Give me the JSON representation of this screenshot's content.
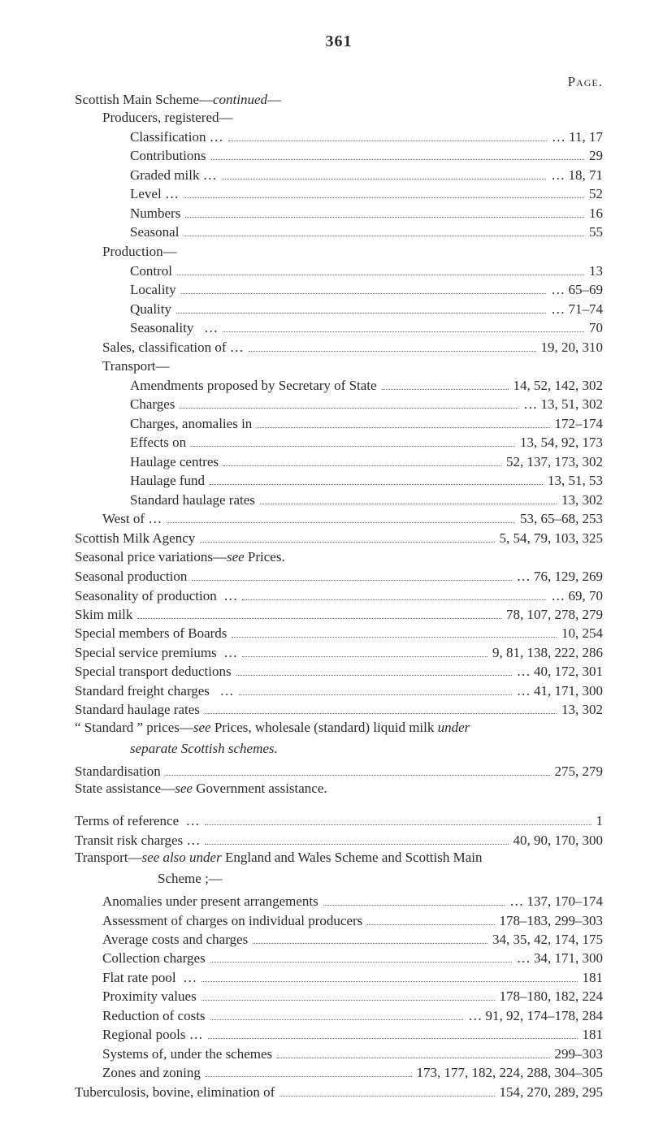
{
  "page_number": "361",
  "page_label": "Page.",
  "colors": {
    "text": "#2a2a2a",
    "background": "#ffffff",
    "dots": "#6a6a6a"
  },
  "typography": {
    "family": "Times New Roman",
    "base_size_pt": 17,
    "line_height": 1.38
  },
  "lines": [
    {
      "type": "heading",
      "indent": 0,
      "pre": "Scottish Main Scheme—",
      "ital": "continued",
      "post": "—"
    },
    {
      "type": "heading",
      "indent": 1,
      "text": "Producers, registered—"
    },
    {
      "type": "entry",
      "indent": 2,
      "label": "Classification …",
      "page": "… 11, 17"
    },
    {
      "type": "entry",
      "indent": 2,
      "label": "Contributions",
      "page": "29"
    },
    {
      "type": "entry",
      "indent": 2,
      "label": "Graded milk …",
      "page": "… 18, 71"
    },
    {
      "type": "entry",
      "indent": 2,
      "label": "Level …",
      "page": "52"
    },
    {
      "type": "entry",
      "indent": 2,
      "label": "Numbers",
      "page": "16"
    },
    {
      "type": "entry",
      "indent": 2,
      "label": "Seasonal",
      "page": "55"
    },
    {
      "type": "heading",
      "indent": 1,
      "text": "Production—"
    },
    {
      "type": "entry",
      "indent": 2,
      "label": "Control",
      "page": "13"
    },
    {
      "type": "entry",
      "indent": 2,
      "label": "Locality",
      "page": "… 65–69"
    },
    {
      "type": "entry",
      "indent": 2,
      "label": "Quality",
      "page": "… 71–74"
    },
    {
      "type": "entry",
      "indent": 2,
      "label": "Seasonality   …",
      "page": "70"
    },
    {
      "type": "entry",
      "indent": 1,
      "label": "Sales, classification of …",
      "page": "19, 20, 310"
    },
    {
      "type": "heading",
      "indent": 1,
      "text": "Transport—"
    },
    {
      "type": "entry",
      "indent": 2,
      "label": "Amendments proposed by Secretary of State",
      "page": "14, 52, 142, 302"
    },
    {
      "type": "entry",
      "indent": 2,
      "label": "Charges",
      "page": "… 13, 51, 302"
    },
    {
      "type": "entry",
      "indent": 2,
      "label": "Charges, anomalies in",
      "page": "172–174"
    },
    {
      "type": "entry",
      "indent": 2,
      "label": "Effects on",
      "page": "13, 54, 92, 173"
    },
    {
      "type": "entry",
      "indent": 2,
      "label": "Haulage centres",
      "page": "52, 137, 173, 302"
    },
    {
      "type": "entry",
      "indent": 2,
      "label": "Haulage fund",
      "page": "13, 51, 53"
    },
    {
      "type": "entry",
      "indent": 2,
      "label": "Standard haulage rates",
      "page": "13, 302"
    },
    {
      "type": "entry",
      "indent": 1,
      "label": "West of …",
      "page": "53, 65–68, 253"
    },
    {
      "type": "entry",
      "indent": 0,
      "label": "Scottish Milk Agency",
      "page": "5, 54, 79, 103, 325"
    },
    {
      "type": "heading-inline",
      "indent": 0,
      "pre": "Seasonal price variations—",
      "ital": "see",
      "post": " Prices."
    },
    {
      "type": "entry",
      "indent": 0,
      "label": "Seasonal production",
      "page": "… 76, 129, 269"
    },
    {
      "type": "entry",
      "indent": 0,
      "label": "Seasonality of production  …",
      "page": "… 69, 70"
    },
    {
      "type": "entry",
      "indent": 0,
      "label": "Skim milk",
      "page": "78, 107, 278, 279"
    },
    {
      "type": "entry",
      "indent": 0,
      "label": "Special members of Boards",
      "page": "10, 254"
    },
    {
      "type": "entry",
      "indent": 0,
      "label": "Special service premiums  …",
      "page": "9, 81, 138, 222, 286"
    },
    {
      "type": "entry",
      "indent": 0,
      "label": "Special transport deductions",
      "page": "… 40, 172, 301"
    },
    {
      "type": "entry",
      "indent": 0,
      "label": "Standard freight charges   …",
      "page": "… 41, 171, 300"
    },
    {
      "type": "entry",
      "indent": 0,
      "label": "Standard haulage rates",
      "page": "13, 302"
    },
    {
      "type": "rich-line",
      "indent": 0,
      "parts": [
        {
          "t": "“ Standard ”  prices—"
        },
        {
          "t": "see",
          "ital": true
        },
        {
          "t": "  Prices,  wholesale  (standard)  liquid  milk  "
        },
        {
          "t": "under",
          "ital": true
        }
      ]
    },
    {
      "type": "rich-line",
      "indent": 2,
      "parts": [
        {
          "t": "separate Scottish schemes.",
          "ital": true
        }
      ]
    },
    {
      "type": "entry",
      "indent": 0,
      "label": "Standardisation",
      "page": "275, 279"
    },
    {
      "type": "rich-line",
      "indent": 0,
      "parts": [
        {
          "t": "State assistance—"
        },
        {
          "t": "see",
          "ital": true
        },
        {
          "t": " Government assistance."
        }
      ]
    },
    {
      "type": "gap"
    },
    {
      "type": "gap"
    },
    {
      "type": "entry",
      "indent": 0,
      "label": "Terms of reference  …",
      "page": "1"
    },
    {
      "type": "entry",
      "indent": 0,
      "label": "Transit risk charges …",
      "page": "40, 90, 170, 300"
    },
    {
      "type": "rich-line",
      "indent": 0,
      "parts": [
        {
          "t": "Transport—"
        },
        {
          "t": "see also under",
          "ital": true
        },
        {
          "t": " England and Wales Scheme and Scottish Main"
        }
      ]
    },
    {
      "type": "rich-line",
      "indent": 3,
      "parts": [
        {
          "t": "Scheme ;—"
        }
      ]
    },
    {
      "type": "entry",
      "indent": 1,
      "label": "Anomalies under present arrangements",
      "page": "… 137, 170–174"
    },
    {
      "type": "entry",
      "indent": 1,
      "label": "Assessment of charges on individual producers",
      "page": "178–183, 299–303"
    },
    {
      "type": "entry",
      "indent": 1,
      "label": "Average costs and charges",
      "page": "34, 35, 42, 174, 175"
    },
    {
      "type": "entry",
      "indent": 1,
      "label": "Collection charges",
      "page": "… 34, 171, 300"
    },
    {
      "type": "entry",
      "indent": 1,
      "label": "Flat rate pool  …",
      "page": "181"
    },
    {
      "type": "entry",
      "indent": 1,
      "label": "Proximity values",
      "page": "178–180, 182, 224"
    },
    {
      "type": "entry",
      "indent": 1,
      "label": "Reduction of costs",
      "page": "… 91, 92, 174–178, 284"
    },
    {
      "type": "entry",
      "indent": 1,
      "label": "Regional pools …",
      "page": "181"
    },
    {
      "type": "entry",
      "indent": 1,
      "label": "Systems of, under the schemes",
      "page": "299–303"
    },
    {
      "type": "entry",
      "indent": 1,
      "label": "Zones and zoning",
      "page": "173, 177, 182, 224, 288, 304–305"
    },
    {
      "type": "entry",
      "indent": 0,
      "label": "Tuberculosis, bovine, elimination of",
      "page": "154, 270, 289, 295"
    }
  ]
}
